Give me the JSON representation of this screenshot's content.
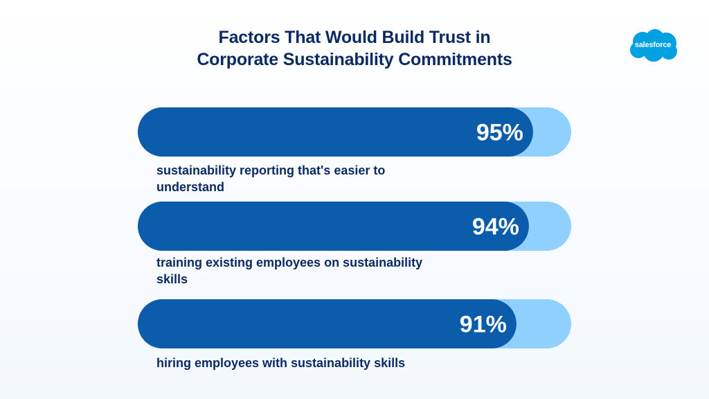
{
  "chart_data": {
    "type": "bar",
    "orientation": "horizontal",
    "title": "Factors That Would Build Trust in Corporate Sustainability Commitments",
    "title_lines": [
      "Factors That Would Build Trust in",
      "Corporate Sustainability Commitments"
    ],
    "categories": [
      "sustainability reporting that's easier to understand",
      "training existing employees on sustainability skills",
      "hiring employees with sustainability skills"
    ],
    "category_lines": [
      [
        "sustainability reporting that's easier to",
        "understand"
      ],
      [
        "training existing employees on sustainability",
        "skills"
      ],
      [
        "hiring employees with sustainability skills"
      ]
    ],
    "values": [
      95,
      94,
      91
    ],
    "value_labels": [
      "95%",
      "94%",
      "91%"
    ],
    "xlim": [
      0,
      100
    ],
    "grid": false,
    "legend": "none",
    "colors": {
      "bar": "#0b5cab",
      "track": "#90d0fe",
      "title": "#0b2a63",
      "label": "#0b2a63",
      "value_text": "#ffffff"
    }
  },
  "logo": {
    "name": "salesforce-logo",
    "text": "salesforce",
    "color": "#00a1e0"
  }
}
